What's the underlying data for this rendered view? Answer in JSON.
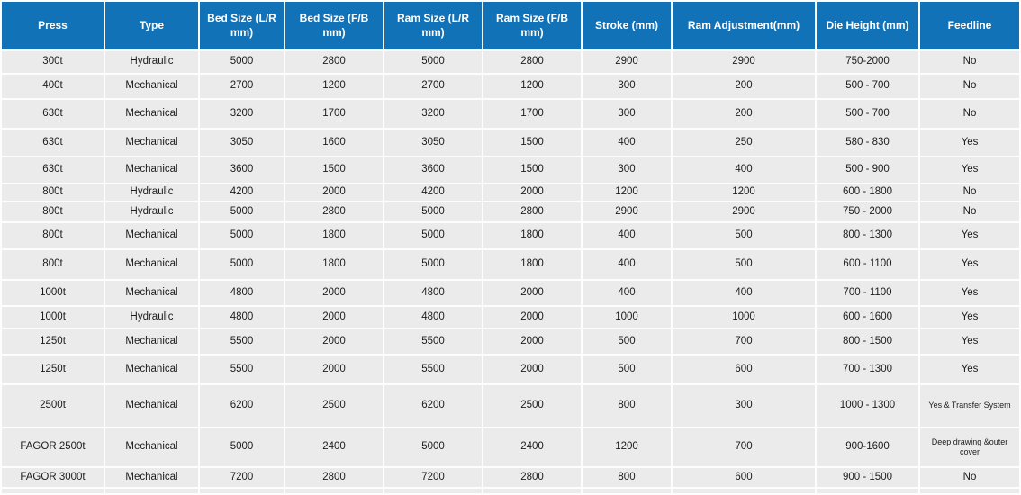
{
  "colors": {
    "header_bg": "#1272b8",
    "header_text": "#ffffff",
    "cell_bg": "#ebebeb",
    "body_text": "#1c1c1c"
  },
  "table": {
    "columns": [
      "Press",
      "Type",
      "Bed Size (L/R mm)",
      "Bed Size (F/B mm)",
      "Ram Size (L/R mm)",
      "Ram Size (F/B mm)",
      "Stroke (mm)",
      "Ram Adjustment(mm)",
      "Die Height (mm)",
      "Feedline"
    ],
    "rows": [
      [
        "300t",
        "Hydraulic",
        "5000",
        "2800",
        "5000",
        "2800",
        "2900",
        "2900",
        "750-2000",
        "No"
      ],
      [
        "400t",
        "Mechanical",
        "2700",
        "1200",
        "2700",
        "1200",
        "300",
        "200",
        "500 - 700",
        "No"
      ],
      [
        "630t",
        "Mechanical",
        "3200",
        "1700",
        "3200",
        "1700",
        "300",
        "200",
        "500 - 700",
        "No"
      ],
      [
        "630t",
        "Mechanical",
        "3050",
        "1600",
        "3050",
        "1500",
        "400",
        "250",
        "580 - 830",
        "Yes"
      ],
      [
        "630t",
        "Mechanical",
        "3600",
        "1500",
        "3600",
        "1500",
        "300",
        "400",
        "500 - 900",
        "Yes"
      ],
      [
        "800t",
        "Hydraulic",
        "4200",
        "2000",
        "4200",
        "2000",
        "1200",
        "1200",
        "600 - 1800",
        "No"
      ],
      [
        "800t",
        "Hydraulic",
        "5000",
        "2800",
        "5000",
        "2800",
        "2900",
        "2900",
        "750 - 2000",
        "No"
      ],
      [
        "800t",
        "Mechanical",
        "5000",
        "1800",
        "5000",
        "1800",
        "400",
        "500",
        "800 - 1300",
        "Yes"
      ],
      [
        "800t",
        "Mechanical",
        "5000",
        "1800",
        "5000",
        "1800",
        "400",
        "500",
        "600 - 1100",
        "Yes"
      ],
      [
        "1000t",
        "Mechanical",
        "4800",
        "2000",
        "4800",
        "2000",
        "400",
        "400",
        "700 - 1100",
        "Yes"
      ],
      [
        "1000t",
        "Hydraulic",
        "4800",
        "2000",
        "4800",
        "2000",
        "1000",
        "1000",
        "600 - 1600",
        "Yes"
      ],
      [
        "1250t",
        "Mechanical",
        "5500",
        "2000",
        "5500",
        "2000",
        "500",
        "700",
        "800 - 1500",
        "Yes"
      ],
      [
        "1250t",
        "Mechanical",
        "5500",
        "2000",
        "5500",
        "2000",
        "500",
        "600",
        "700 - 1300",
        "Yes"
      ],
      [
        "2500t",
        "Mechanical",
        "6200",
        "2500",
        "6200",
        "2500",
        "800",
        "300",
        "1000 - 1300",
        "Yes & Transfer System"
      ],
      [
        "FAGOR 2500t",
        "Mechanical",
        "5000",
        "2400",
        "5000",
        "2400",
        "1200",
        "700",
        "900-1600",
        "Deep drawing &outer cover"
      ],
      [
        "FAGOR 3000t",
        "Mechanical",
        "7200",
        "2800",
        "7200",
        "2800",
        "800",
        "600",
        "900 - 1500",
        "No"
      ]
    ]
  }
}
